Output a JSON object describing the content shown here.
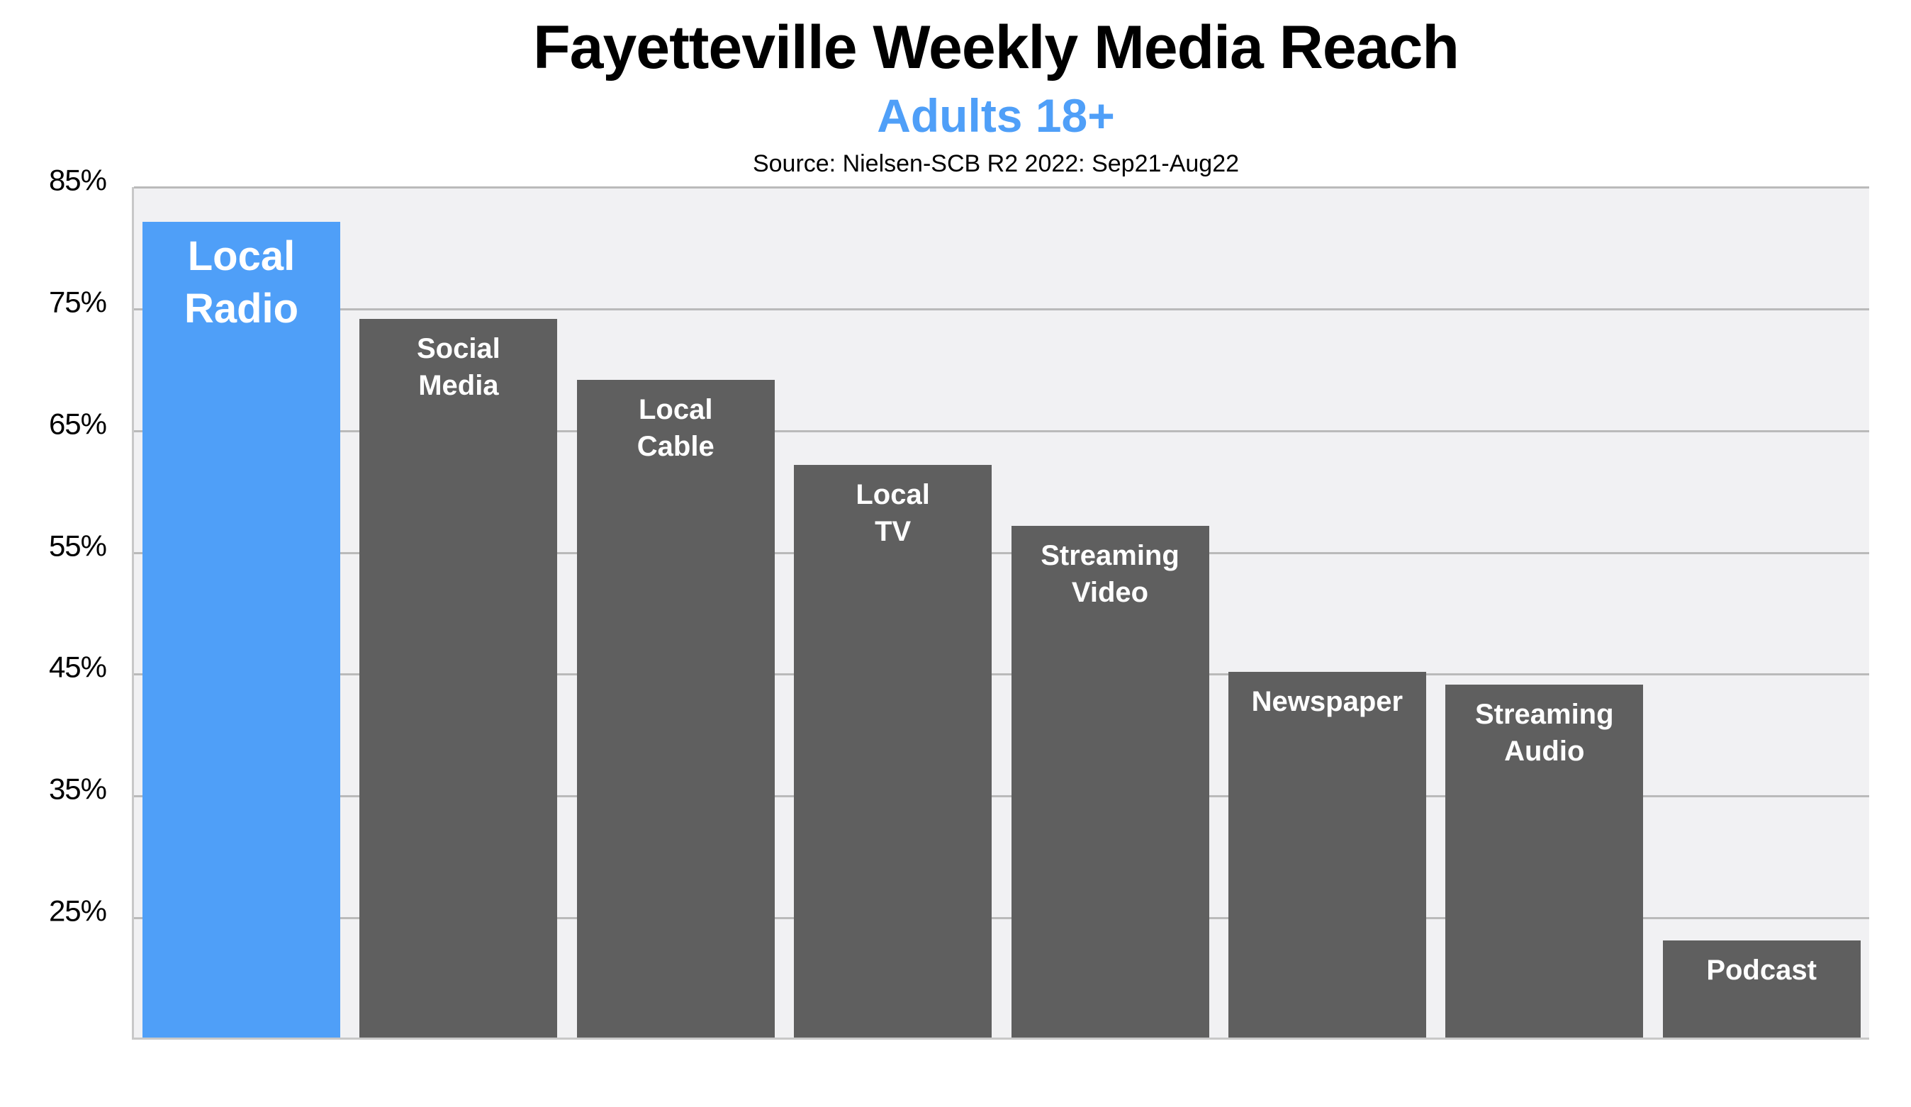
{
  "header": {
    "title": "Fayetteville Weekly Media Reach",
    "subtitle": "Adults 18+",
    "source": "Source: Nielsen-SCB R2 2022: Sep21-Aug22"
  },
  "colors": {
    "highlight": "#4f9ff8",
    "bar": "#5f5f5f",
    "plot_background": "#f1f1f3",
    "gridline": "#bababa"
  },
  "y_axis": {
    "ticks": [
      "85%",
      "75%",
      "65%",
      "55%",
      "45%",
      "35%",
      "25%"
    ]
  },
  "bars": [
    {
      "label": "Local\nRadio",
      "value": 82,
      "highlight": true
    },
    {
      "label": "Social\nMedia",
      "value": 74,
      "highlight": false
    },
    {
      "label": "Local\nCable",
      "value": 69,
      "highlight": false
    },
    {
      "label": "Local\nTV",
      "value": 62,
      "highlight": false
    },
    {
      "label": "Streaming\nVideo",
      "value": 57,
      "highlight": false
    },
    {
      "label": "Newspaper",
      "value": 45,
      "highlight": false
    },
    {
      "label": "Streaming\nAudio",
      "value": 44,
      "highlight": false
    },
    {
      "label": "Podcast",
      "value": 23,
      "highlight": false
    }
  ],
  "chart_data": {
    "type": "bar",
    "title": "Fayetteville Weekly Media Reach",
    "subtitle": "Adults 18+",
    "annotation": "Source: Nielsen-SCB R2 2022: Sep21-Aug22",
    "categories": [
      "Local Radio",
      "Social Media",
      "Local Cable",
      "Local TV",
      "Streaming Video",
      "Newspaper",
      "Streaming Audio",
      "Podcast"
    ],
    "values": [
      82,
      74,
      69,
      62,
      57,
      45,
      44,
      23
    ],
    "value_unit": "%",
    "xlabel": "",
    "ylabel": "",
    "ylim": [
      15,
      85
    ],
    "yticks": [
      25,
      35,
      45,
      55,
      65,
      75,
      85
    ],
    "grid": true,
    "legend": null,
    "category_labels_inside_bars": true,
    "highlighted_category": "Local Radio"
  }
}
